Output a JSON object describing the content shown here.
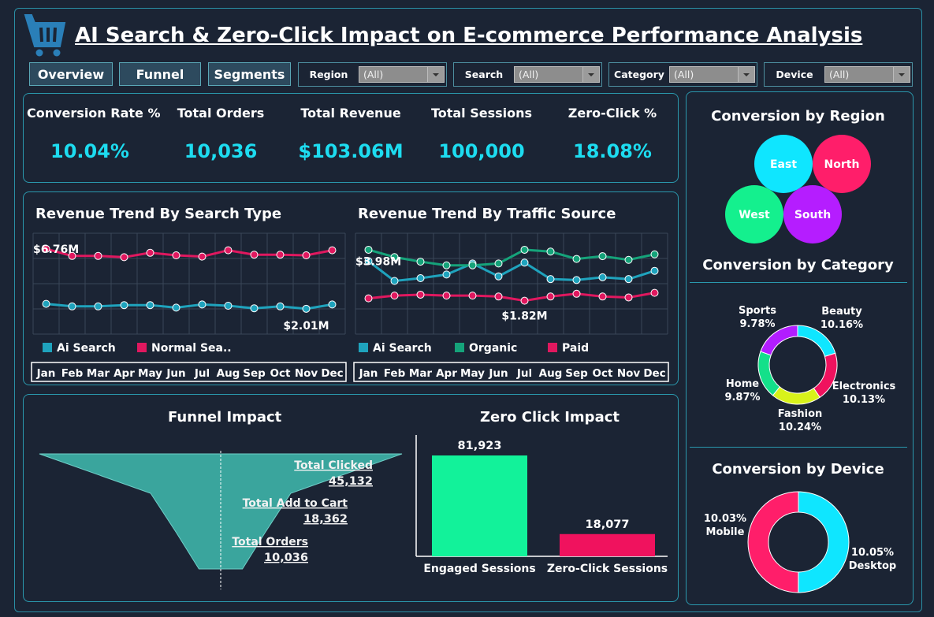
{
  "header": {
    "title": "AI Search & Zero-Click Impact on E-commerce Performance Analysis",
    "icon": "shopping-cart-icon"
  },
  "nav": {
    "buttons": [
      "Overview",
      "Funnel",
      "Segments"
    ]
  },
  "filters": [
    {
      "label": "Region",
      "value": "(All)"
    },
    {
      "label": "Search",
      "value": "(All)"
    },
    {
      "label": "Category",
      "value": "(All)"
    },
    {
      "label": "Device",
      "value": "(All)"
    }
  ],
  "kpis": [
    {
      "label": "Conversion Rate %",
      "value": "10.04%"
    },
    {
      "label": "Total Orders",
      "value": "10,036"
    },
    {
      "label": "Total Revenue",
      "value": "$103.06M"
    },
    {
      "label": "Total Sessions",
      "value": "100,000"
    },
    {
      "label": "Zero-Click %",
      "value": "18.08%"
    }
  ],
  "colors": {
    "background": "#1b2434",
    "accent": "#1ddcf0",
    "border": "#2a98ad",
    "ai_search": "#1fa3bd",
    "normal_search": "#e0185f",
    "organic": "#15a37a",
    "paid": "#e0185f"
  },
  "chart_data": [
    {
      "type": "line",
      "title": "Revenue Trend By Search Type",
      "categories": [
        "Jan",
        "Feb",
        "Mar",
        "Apr",
        "May",
        "Jun",
        "Jul",
        "Aug",
        "Sep",
        "Oct",
        "Nov",
        "Dec"
      ],
      "series": [
        {
          "name": "Ai Search",
          "values": [
            2.4,
            2.2,
            2.2,
            2.3,
            2.3,
            2.1,
            2.35,
            2.25,
            2.05,
            2.2,
            2.01,
            2.35
          ]
        },
        {
          "name": "Normal Sea..",
          "values": [
            6.76,
            6.2,
            6.2,
            6.1,
            6.45,
            6.25,
            6.15,
            6.65,
            6.3,
            6.3,
            6.25,
            6.65
          ]
        }
      ],
      "annotations": [
        {
          "text": "$6.76M",
          "series": 1,
          "index": 0
        },
        {
          "text": "$2.01M",
          "series": 0,
          "index": 10
        }
      ],
      "ylim": [
        0,
        8
      ]
    },
    {
      "type": "line",
      "title": "Revenue Trend By Traffic Source",
      "categories": [
        "Jan",
        "Feb",
        "Mar",
        "Apr",
        "May",
        "Jun",
        "Jul",
        "Aug",
        "Sep",
        "Oct",
        "Nov",
        "Dec"
      ],
      "series": [
        {
          "name": "Ai Search",
          "values": [
            3.98,
            2.9,
            3.05,
            3.25,
            3.85,
            3.15,
            3.9,
            3.0,
            2.95,
            3.1,
            3.0,
            3.45
          ]
        },
        {
          "name": "Organic",
          "values": [
            4.6,
            4.2,
            3.95,
            3.75,
            3.75,
            3.85,
            4.6,
            4.5,
            4.1,
            4.25,
            4.05,
            4.35
          ]
        },
        {
          "name": "Paid",
          "values": [
            1.95,
            2.1,
            2.15,
            2.1,
            2.1,
            2.05,
            1.82,
            2.05,
            2.2,
            2.05,
            2.0,
            2.25
          ]
        }
      ],
      "annotations": [
        {
          "text": "$3.98M",
          "series": 0,
          "index": 0
        },
        {
          "text": "$1.82M",
          "series": 2,
          "index": 6
        }
      ],
      "ylim": [
        0,
        5.5
      ]
    },
    {
      "type": "funnel",
      "title": "Funnel Impact",
      "stages": [
        {
          "label": "Total Clicked",
          "value": 45132,
          "display": "45,132"
        },
        {
          "label": "Total Add to Cart",
          "value": 18362,
          "display": "18,362"
        },
        {
          "label": "Total Orders",
          "value": 10036,
          "display": "10,036"
        }
      ]
    },
    {
      "type": "bar",
      "title": "Zero Click Impact",
      "categories": [
        "Engaged Sessions",
        "Zero-Click Sessions"
      ],
      "values": [
        81923,
        18077
      ],
      "labels": [
        "81,923",
        "18,077"
      ],
      "colors": [
        "#12f29a",
        "#f0125e"
      ]
    },
    {
      "type": "scatter",
      "title": "Conversion by Region",
      "points": [
        {
          "label": "East",
          "color": "#0fe6ff"
        },
        {
          "label": "North",
          "color": "#ff1e6a"
        },
        {
          "label": "West",
          "color": "#14f08e"
        },
        {
          "label": "South",
          "color": "#b51dff"
        }
      ]
    },
    {
      "type": "pie",
      "title": "Conversion by Category",
      "slices": [
        {
          "label": "Beauty",
          "value": 10.16,
          "display": "10.16%",
          "color": "#0fe6ff"
        },
        {
          "label": "Electronics",
          "value": 10.13,
          "display": "10.13%",
          "color": "#f0125e"
        },
        {
          "label": "Fashion",
          "value": 10.24,
          "display": "10.24%",
          "color": "#d8f21a"
        },
        {
          "label": "Home",
          "value": 9.87,
          "display": "9.87%",
          "color": "#14e08a"
        },
        {
          "label": "Sports",
          "value": 9.78,
          "display": "9.78%",
          "color": "#b21dff"
        }
      ]
    },
    {
      "type": "pie",
      "title": "Conversion by Device",
      "slices": [
        {
          "label": "Desktop",
          "value": 10.05,
          "display": "10.05%",
          "color": "#0fe6ff"
        },
        {
          "label": "Mobile",
          "value": 10.03,
          "display": "10.03%",
          "color": "#ff1e6a"
        }
      ]
    }
  ]
}
